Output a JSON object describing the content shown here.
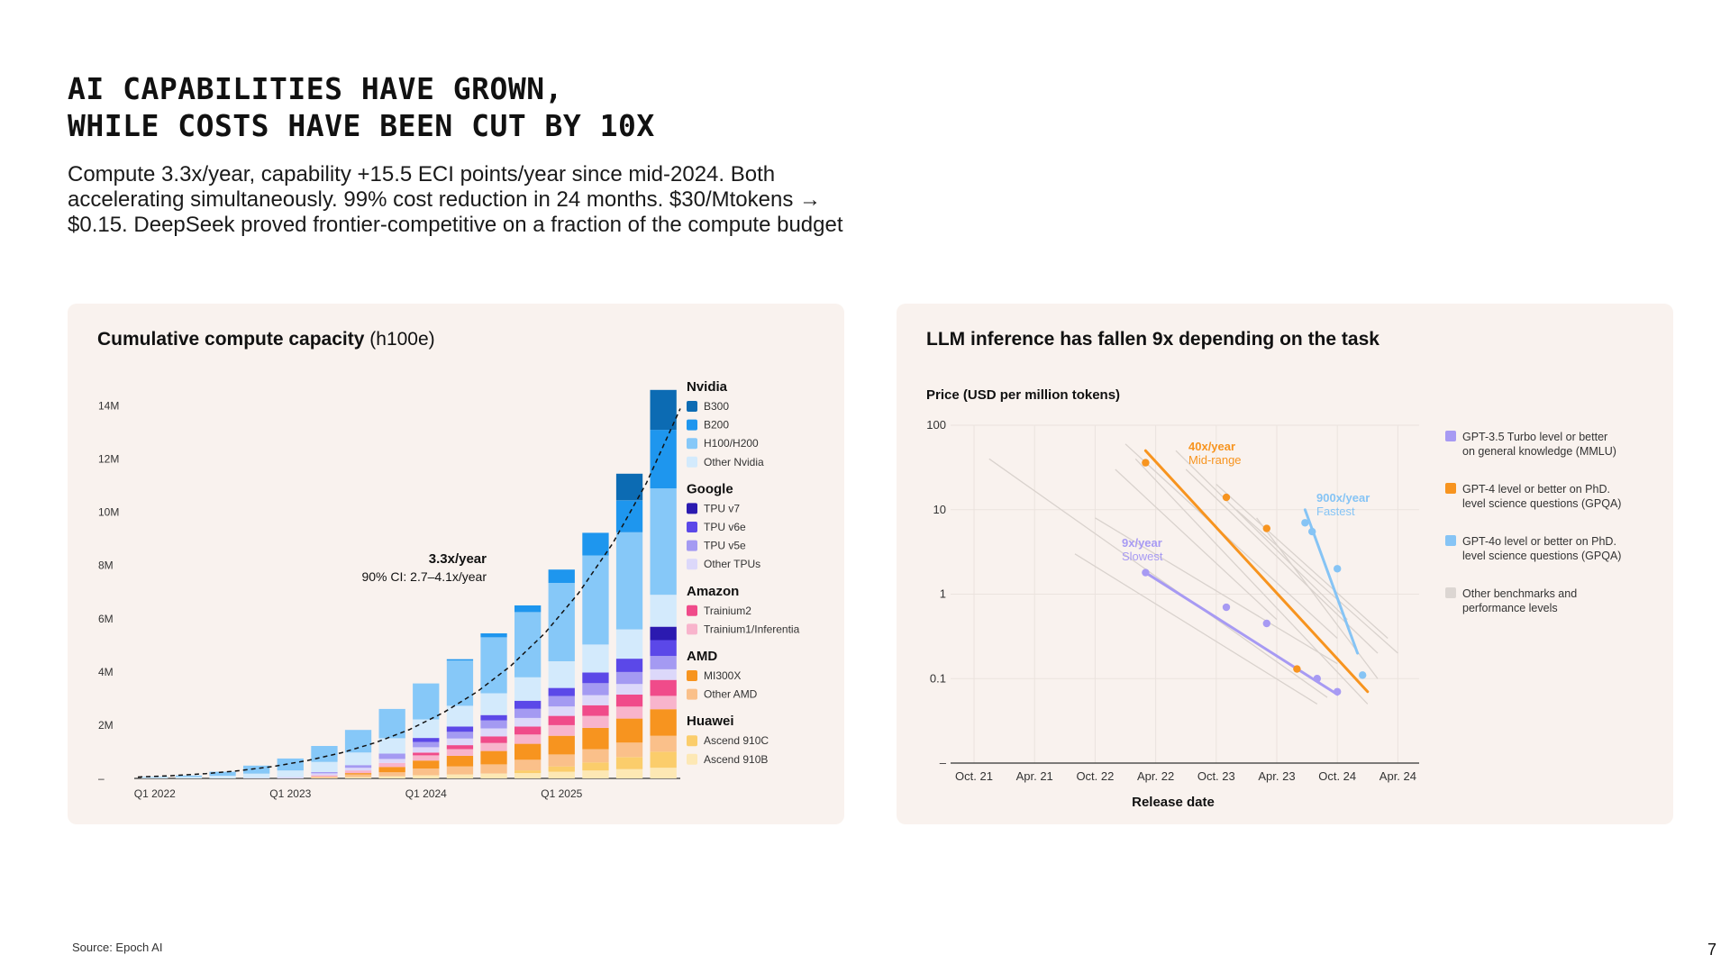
{
  "page": {
    "title_lines": [
      "AI CAPABILITIES HAVE GROWN,",
      "WHILE COSTS HAVE BEEN CUT BY 10X"
    ],
    "subtitle_lines": [
      "Compute 3.3x/year, capability +15.5 ECI points/year since mid-2024. Both",
      "accelerating simultaneously.  99% cost reduction in 24 months. $30/Mtokens →",
      "$0.15. DeepSeek proved frontier-competitive on a fraction of the compute budget"
    ],
    "source": "Source: Epoch AI",
    "page_number": "7"
  },
  "chart_data": [
    {
      "type": "bar",
      "stacked": true,
      "title": "Cumulative compute capacity",
      "title_unit": "(h100e)",
      "ylim": [
        0,
        15000000
      ],
      "yticks": [
        {
          "value": 0,
          "label": "–"
        },
        {
          "value": 2000000,
          "label": "2M"
        },
        {
          "value": 4000000,
          "label": "4M"
        },
        {
          "value": 6000000,
          "label": "6M"
        },
        {
          "value": 8000000,
          "label": "8M"
        },
        {
          "value": 10000000,
          "label": "10M"
        },
        {
          "value": 12000000,
          "label": "12M"
        },
        {
          "value": 14000000,
          "label": "14M"
        }
      ],
      "categories": [
        "Q1 2022",
        "Q2 2022",
        "Q3 2022",
        "Q4 2022",
        "Q1 2023",
        "Q2 2023",
        "Q3 2023",
        "Q4 2023",
        "Q1 2024",
        "Q2 2024",
        "Q3 2024",
        "Q4 2024",
        "Q1 2025",
        "Q2 2025",
        "Q3 2025",
        "Q4 2025"
      ],
      "tick_labels": [
        {
          "index": 0,
          "label": "Q1 2022"
        },
        {
          "index": 4,
          "label": "Q1 2023"
        },
        {
          "index": 8,
          "label": "Q1 2024"
        },
        {
          "index": 12,
          "label": "Q1 2025"
        }
      ],
      "legend": {
        "placement": "right",
        "groups": [
          {
            "name": "Nvidia",
            "items": [
              {
                "label": "B300",
                "color": "#0c6bb3"
              },
              {
                "label": "B200",
                "color": "#1e96ee"
              },
              {
                "label": "H100/H200",
                "color": "#86c8f8"
              },
              {
                "label": "Other Nvidia",
                "color": "#d3eafc"
              }
            ]
          },
          {
            "name": "Google",
            "items": [
              {
                "label": "TPU v7",
                "color": "#2b1ab0"
              },
              {
                "label": "TPU v6e",
                "color": "#5b48e8"
              },
              {
                "label": "TPU v5e",
                "color": "#a49af2"
              },
              {
                "label": "Other TPUs",
                "color": "#dcd8fa"
              }
            ]
          },
          {
            "name": "Amazon",
            "items": [
              {
                "label": "Trainium2",
                "color": "#f04b8a"
              },
              {
                "label": "Trainium1/Inferentia",
                "color": "#f8b4cc"
              }
            ]
          },
          {
            "name": "AMD",
            "items": [
              {
                "label": "MI300X",
                "color": "#f7941f"
              },
              {
                "label": "Other AMD",
                "color": "#fac08a"
              }
            ]
          },
          {
            "name": "Huawei",
            "items": [
              {
                "label": "Ascend 910C",
                "color": "#fbcd6b"
              },
              {
                "label": "Ascend 910B",
                "color": "#fde8b4"
              }
            ]
          }
        ]
      },
      "series": [
        {
          "name": "B300",
          "values": [
            0,
            0,
            0,
            0,
            0,
            0,
            0,
            0,
            0,
            0,
            0,
            0,
            0,
            0,
            1000000,
            1500000
          ]
        },
        {
          "name": "B200",
          "values": [
            0,
            0,
            0,
            0,
            0,
            0,
            0,
            0,
            0,
            50000,
            150000,
            250000,
            500000,
            850000,
            1200000,
            2200000
          ]
        },
        {
          "name": "H100/H200",
          "values": [
            20000,
            50000,
            150000,
            300000,
            450000,
            600000,
            850000,
            1100000,
            1350000,
            1700000,
            2100000,
            2450000,
            2950000,
            3350000,
            3650000,
            4000000
          ]
        },
        {
          "name": "Other Nvidia",
          "values": [
            40000,
            60000,
            100000,
            160000,
            250000,
            380000,
            470000,
            580000,
            700000,
            780000,
            820000,
            880000,
            1000000,
            1050000,
            1100000,
            1200000
          ]
        },
        {
          "name": "TPU v7",
          "values": [
            0,
            0,
            0,
            0,
            0,
            0,
            0,
            0,
            0,
            0,
            0,
            0,
            0,
            0,
            0,
            500000
          ]
        },
        {
          "name": "TPU v6e",
          "values": [
            0,
            0,
            0,
            0,
            0,
            0,
            0,
            0,
            150000,
            200000,
            200000,
            300000,
            300000,
            400000,
            500000,
            600000
          ]
        },
        {
          "name": "TPU v5e",
          "values": [
            0,
            0,
            0,
            0,
            0,
            50000,
            100000,
            200000,
            200000,
            250000,
            300000,
            350000,
            400000,
            450000,
            450000,
            500000
          ]
        },
        {
          "name": "Other TPUs",
          "values": [
            0,
            0,
            0,
            20000,
            50000,
            70000,
            100000,
            150000,
            200000,
            250000,
            300000,
            320000,
            350000,
            380000,
            400000,
            400000
          ]
        },
        {
          "name": "Trainium2",
          "values": [
            0,
            0,
            0,
            0,
            0,
            0,
            0,
            0,
            100000,
            150000,
            250000,
            300000,
            350000,
            400000,
            450000,
            600000
          ]
        },
        {
          "name": "Trainium1/Inferentia",
          "values": [
            0,
            0,
            0,
            0,
            0,
            50000,
            100000,
            150000,
            200000,
            250000,
            300000,
            350000,
            400000,
            450000,
            450000,
            500000
          ]
        },
        {
          "name": "MI300X",
          "values": [
            0,
            0,
            0,
            0,
            0,
            0,
            50000,
            200000,
            300000,
            400000,
            500000,
            600000,
            700000,
            800000,
            900000,
            1000000
          ]
        },
        {
          "name": "Other AMD",
          "values": [
            0,
            0,
            0,
            0,
            0,
            50000,
            100000,
            150000,
            250000,
            300000,
            350000,
            400000,
            450000,
            500000,
            550000,
            600000
          ]
        },
        {
          "name": "Ascend 910C",
          "values": [
            0,
            0,
            0,
            0,
            0,
            0,
            0,
            0,
            0,
            0,
            0,
            100000,
            200000,
            300000,
            450000,
            600000
          ]
        },
        {
          "name": "Ascend 910B",
          "values": [
            0,
            0,
            0,
            0,
            0,
            20000,
            50000,
            80000,
            120000,
            150000,
            180000,
            200000,
            250000,
            300000,
            350000,
            400000
          ]
        }
      ],
      "annotation": {
        "label": "3.3x/year",
        "sublabel": "90% CI: 2.7–4.1x/year"
      },
      "trend_line": {
        "style": "dashed",
        "values": [
          50000,
          100000,
          180000,
          290000,
          450000,
          670000,
          960000,
          1340000,
          1830000,
          2460000,
          3250000,
          4230000,
          5450000,
          6960000,
          8820000,
          11100000,
          13900000
        ]
      }
    },
    {
      "type": "scatter",
      "title": "LLM inference has fallen 9x depending on the task",
      "ylabel": "Price (USD per million tokens)",
      "xlabel": "Release date",
      "y_scale": "log",
      "ylim": [
        0.01,
        100
      ],
      "yticks": [
        {
          "value": 100,
          "label": "100"
        },
        {
          "value": 10,
          "label": "10"
        },
        {
          "value": 1,
          "label": "1"
        },
        {
          "value": 0.1,
          "label": "0.1"
        },
        {
          "value": 0.01,
          "label": "–"
        }
      ],
      "xlim": [
        0,
        36
      ],
      "xticks": [
        {
          "value": 0,
          "label": "Oct. 21"
        },
        {
          "value": 6,
          "label": "Apr. 21"
        },
        {
          "value": 12,
          "label": "Oct. 22"
        },
        {
          "value": 18,
          "label": "Apr. 22"
        },
        {
          "value": 24,
          "label": "Oct. 23"
        },
        {
          "value": 30,
          "label": "Apr. 23"
        },
        {
          "value": 36,
          "label": "Oct. 24"
        },
        {
          "value": 42,
          "label": "Apr. 24"
        }
      ],
      "grid": true,
      "legend": {
        "placement": "right",
        "items": [
          {
            "lines": [
              "GPT-3.5 Turbo level or better",
              "on general knowledge (MMLU)"
            ],
            "color": "#a79af3"
          },
          {
            "lines": [
              "GPT-4 level or better on PhD.",
              "level science questions (GPQA)"
            ],
            "color": "#f7941f"
          },
          {
            "lines": [
              "GPT-4o level or better on PhD.",
              "level science questions (GPQA)"
            ],
            "color": "#86c4f5"
          },
          {
            "lines": [
              "Other benchmarks and",
              "performance levels"
            ],
            "color": "#dcd6d2"
          }
        ]
      },
      "series": [
        {
          "legend_index": 0,
          "color": "#a79af3",
          "points": [
            {
              "x": 17,
              "y": 1.8
            },
            {
              "x": 25,
              "y": 0.7
            },
            {
              "x": 29,
              "y": 0.45
            },
            {
              "x": 34,
              "y": 0.1
            },
            {
              "x": 36,
              "y": 0.07
            }
          ],
          "trend": {
            "from": {
              "x": 17,
              "y": 1.8
            },
            "to": {
              "x": 36,
              "y": 0.065
            }
          },
          "label": "9x/year",
          "sublabel": "Slowest"
        },
        {
          "legend_index": 1,
          "color": "#f7941f",
          "points": [
            {
              "x": 17,
              "y": 36
            },
            {
              "x": 25,
              "y": 14
            },
            {
              "x": 29,
              "y": 6
            },
            {
              "x": 32,
              "y": 0.13
            }
          ],
          "trend": {
            "from": {
              "x": 17,
              "y": 50
            },
            "to": {
              "x": 39,
              "y": 0.07
            }
          },
          "label": "40x/year",
          "sublabel": "Mid-range"
        },
        {
          "legend_index": 2,
          "color": "#86c4f5",
          "points": [
            {
              "x": 32.8,
              "y": 7
            },
            {
              "x": 33.5,
              "y": 5.5
            },
            {
              "x": 36,
              "y": 2
            },
            {
              "x": 38.5,
              "y": 0.11
            }
          ],
          "trend": {
            "from": {
              "x": 32.8,
              "y": 10
            },
            "to": {
              "x": 38,
              "y": 0.2
            }
          },
          "label": "900x/year",
          "sublabel": "Fastest"
        }
      ],
      "other_lines": [
        [
          {
            "x": 1.5,
            "y": 40
          },
          {
            "x": 35,
            "y": 0.06
          }
        ],
        [
          {
            "x": 14,
            "y": 30
          },
          {
            "x": 30,
            "y": 0.5
          }
        ],
        [
          {
            "x": 15,
            "y": 60
          },
          {
            "x": 36,
            "y": 0.3
          }
        ],
        [
          {
            "x": 16,
            "y": 40
          },
          {
            "x": 39,
            "y": 0.05
          }
        ],
        [
          {
            "x": 20,
            "y": 50
          },
          {
            "x": 37,
            "y": 0.5
          }
        ],
        [
          {
            "x": 21,
            "y": 30
          },
          {
            "x": 40,
            "y": 0.2
          }
        ],
        [
          {
            "x": 24,
            "y": 20
          },
          {
            "x": 41,
            "y": 0.3
          }
        ],
        [
          {
            "x": 26,
            "y": 10
          },
          {
            "x": 42,
            "y": 0.2
          }
        ],
        [
          {
            "x": 28,
            "y": 8
          },
          {
            "x": 40,
            "y": 0.1
          }
        ],
        [
          {
            "x": 12,
            "y": 8
          },
          {
            "x": 36,
            "y": 0.15
          }
        ],
        [
          {
            "x": 10,
            "y": 3
          },
          {
            "x": 34,
            "y": 0.05
          }
        ]
      ]
    }
  ]
}
